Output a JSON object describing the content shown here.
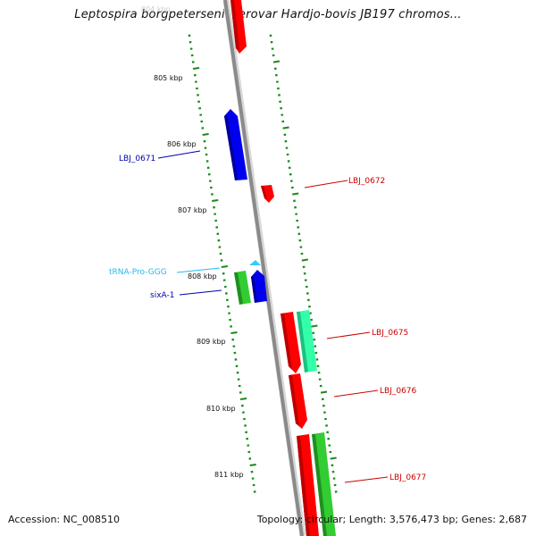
{
  "title": "Leptospira borgpetersenii serovar Hardjo-bovis JB197 chromos...",
  "footer": {
    "accession": "Accession: NC_008510",
    "summary": "Topology: circular; Length: 3,576,473 bp; Genes: 2,687"
  },
  "colors": {
    "backbone": "#8a8a8a",
    "ticks": "#1a8a1a",
    "red": "#ff0000",
    "blue": "#0000ee",
    "green": "#33cc33",
    "aqua": "#33ffaa",
    "cyan": "#33ccff",
    "red_label": "#cc0000",
    "blue_label": "#0000aa",
    "cyan_label": "#22bbee"
  },
  "scale_labels": [
    "805 kbp",
    "806 kbp",
    "807 kbp",
    "808 kbp",
    "809 kbp",
    "810 kbp",
    "811 kbp"
  ],
  "features": [
    {
      "name": "LBJ_0671",
      "strand": "reverse",
      "type": "CDS",
      "color": "blue"
    },
    {
      "name": "LBJ_0672",
      "strand": "forward",
      "type": "CDS",
      "color": "red"
    },
    {
      "name": "tRNA-Pro-GGG",
      "strand": "forward",
      "type": "tRNA",
      "color": "cyan"
    },
    {
      "name": "sixA-1",
      "strand": "reverse",
      "type": "CDS",
      "color": "blue"
    },
    {
      "name": "LBJ_0675",
      "strand": "forward",
      "type": "CDS",
      "color": "red"
    },
    {
      "name": "LBJ_0676",
      "strand": "forward",
      "type": "CDS",
      "color": "red"
    },
    {
      "name": "LBJ_0677",
      "strand": "forward",
      "type": "CDS",
      "color": "red"
    }
  ]
}
